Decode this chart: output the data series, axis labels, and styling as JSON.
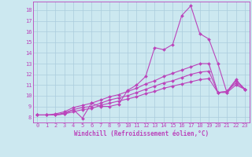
{
  "background_color": "#cce8f0",
  "grid_color": "#aaccdd",
  "line_color": "#bb44bb",
  "marker": "D",
  "markersize": 2.0,
  "linewidth": 0.8,
  "xlabel": "Windchill (Refroidissement éolien,°C)",
  "xlabel_fontsize": 5.5,
  "tick_fontsize": 5.0,
  "xlim": [
    -0.5,
    23.5
  ],
  "ylim": [
    7.5,
    18.8
  ],
  "yticks": [
    8,
    9,
    10,
    11,
    12,
    13,
    14,
    15,
    16,
    17,
    18
  ],
  "xticks": [
    0,
    1,
    2,
    3,
    4,
    5,
    6,
    7,
    8,
    9,
    10,
    11,
    12,
    13,
    14,
    15,
    16,
    17,
    18,
    19,
    20,
    21,
    22,
    23
  ],
  "series": [
    [
      8.2,
      8.2,
      8.2,
      8.3,
      8.7,
      7.9,
      9.3,
      9.0,
      9.0,
      9.2,
      10.5,
      11.0,
      11.8,
      14.5,
      14.3,
      14.8,
      17.5,
      18.4,
      15.8,
      15.3,
      13.0,
      10.3,
      11.4,
      10.6
    ],
    [
      8.2,
      8.2,
      8.3,
      8.5,
      8.9,
      9.1,
      9.3,
      9.6,
      9.9,
      10.1,
      10.4,
      10.7,
      11.1,
      11.4,
      11.8,
      12.1,
      12.4,
      12.7,
      13.0,
      13.0,
      10.3,
      10.4,
      11.5,
      10.6
    ],
    [
      8.2,
      8.2,
      8.2,
      8.4,
      8.7,
      8.9,
      9.0,
      9.3,
      9.6,
      9.8,
      10.0,
      10.3,
      10.6,
      10.9,
      11.2,
      11.4,
      11.7,
      12.0,
      12.2,
      12.3,
      10.3,
      10.4,
      11.2,
      10.6
    ],
    [
      8.2,
      8.2,
      8.2,
      8.3,
      8.5,
      8.7,
      8.8,
      9.1,
      9.3,
      9.5,
      9.7,
      9.9,
      10.2,
      10.4,
      10.7,
      10.9,
      11.1,
      11.3,
      11.5,
      11.6,
      10.3,
      10.3,
      11.0,
      10.6
    ]
  ]
}
